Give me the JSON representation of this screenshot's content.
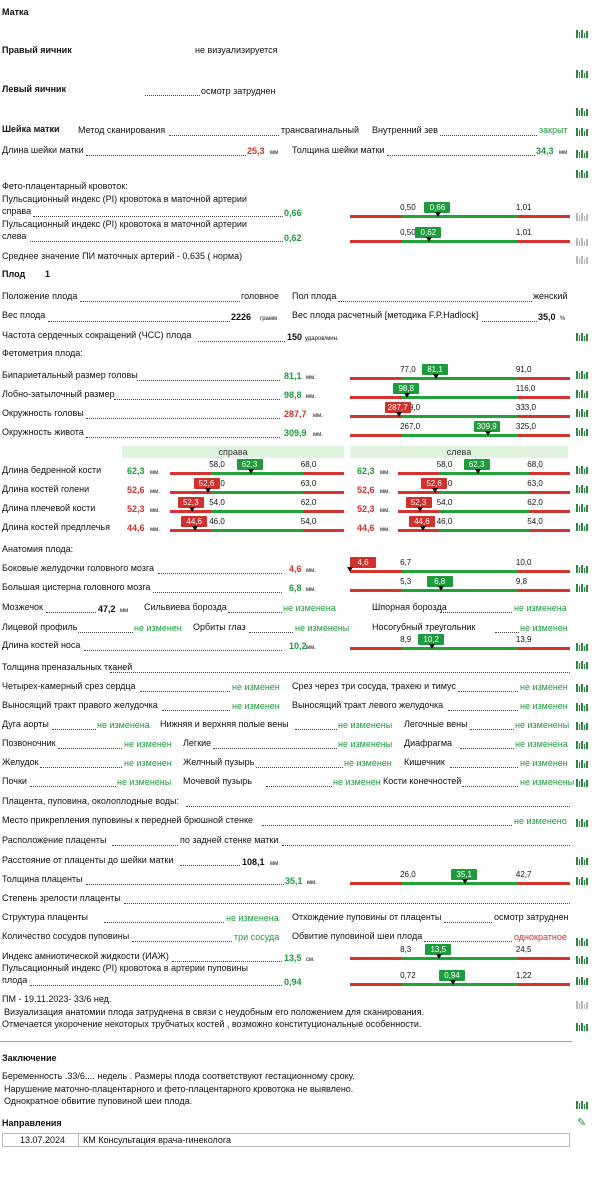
{
  "uterus_title": "Матка",
  "right_ovary": {
    "label": "Правый яичник",
    "value": "не визуализируется"
  },
  "left_ovary": {
    "label": "Левый яичник",
    "value": "осмотр затруднен"
  },
  "cervix": {
    "title": "Шейка матки",
    "scan_label": "Метод сканирования",
    "scan_value": "трансвагинальный",
    "os_label": "Внутренний зев",
    "os_value": "закрыт",
    "length_label": "Длина шейки матки",
    "length_value": "25,3",
    "length_unit": "мм",
    "thickness_label": "Толщина шейки матки",
    "thickness_value": "34,3",
    "thickness_unit": "мм"
  },
  "doppler": {
    "title": "Фето-плацентарный кровоток:",
    "pi_right_l1": "Пульсационный индекс (PI) кровотока в маточной артерии",
    "pi_right_l2": "справа",
    "pi_right_value": "0,66",
    "pi_left_l1": "Пульсационный индекс (PI) кровотока в маточной артерии",
    "pi_left_l2": "слева",
    "pi_left_value": "0,62",
    "mean": "Среднее значение ПИ маточных артерий -  0,635  ( норма)"
  },
  "fetus": {
    "label": "Плод",
    "number": "1",
    "position_label": "Положение плода",
    "position_value": "головное",
    "sex_label": "Пол плода",
    "sex_value": "женский",
    "weight_label": "Вес плода",
    "weight_value": "2226",
    "weight_unit": "грамм",
    "weight_calc_label": "Вес плода расчетный [методика F.P.Hadlock]",
    "weight_calc_value": "35,0",
    "weight_calc_unit": "%",
    "hr_label": "Частота сердечных сокращений (ЧСС) плода",
    "hr_value": "150",
    "hr_unit": "ударов/мин.",
    "fetometry_title": "Фетометрия плода:"
  },
  "fetometry": [
    {
      "label": "Бипариетальный размер головы",
      "value": "81,1",
      "unit": "мм.",
      "min": "77,0",
      "max": "91,0",
      "badge": "81,1"
    },
    {
      "label": "Лобно-затылочный размер",
      "value": "98,8",
      "unit": "мм.",
      "min": "98,0",
      "max": "116,0",
      "badge": "98,8"
    },
    {
      "label": "Окружность головы",
      "value": "287,7",
      "unit": "мм.",
      "min": "289,0",
      "max": "333,0",
      "badge": "287,7"
    },
    {
      "label": "Окружность живота",
      "value": "309,9",
      "unit": "мм.",
      "min": "267,0",
      "max": "325,0",
      "badge": "309,9"
    }
  ],
  "sides": {
    "right": "справа",
    "left": "слева"
  },
  "bones": [
    {
      "label": "Длина бедренной кости",
      "value": "62,3",
      "unit": "мм.",
      "min": "58,0",
      "max": "68,0",
      "badge": "62,3"
    },
    {
      "label": "Длина костей голени",
      "value": "52,6",
      "unit": "мм.",
      "min": "53,0",
      "max": "63,0",
      "badge": "52,6"
    },
    {
      "label": "Длина плечевой кости",
      "value": "52,3",
      "unit": "мм.",
      "min": "54,0",
      "max": "62,0",
      "badge": "52,3"
    },
    {
      "label": "Длина костей предплечья",
      "value": "44,6",
      "unit": "мм.",
      "min": "46,0",
      "max": "54,0",
      "badge": "44,6"
    }
  ],
  "anatomy": {
    "title": "Анатомия плода:",
    "ventricles_label": "Боковые желудочки головного мозга",
    "ventricles_value": "4,6",
    "ventricles_unit": "мм.",
    "ventricles_min": "6,7",
    "ventricles_max": "10,0",
    "ventricles_badge": "4,6",
    "cisterna_label": "Большая цистерна головного мозга",
    "cisterna_value": "6,8",
    "cisterna_unit": "мм.",
    "cisterna_min": "5,3",
    "cisterna_max": "9,8",
    "cisterna_badge": "6,8",
    "cerebellum_label": "Мозжечок",
    "cerebellum_value": "47,2",
    "cerebellum_unit": "мм",
    "sylvian_label": "Сильвиева борозда",
    "sylvian_value": "не изменена",
    "parieto_label": "Шпорная борозда",
    "parieto_value": "не изменена",
    "face_label": "Лицевой профиль",
    "face_value": "не изменен",
    "orbits_label": "Орбиты глаз",
    "orbits_value": "не изменены",
    "nasolabial_label": "Носогубный треугольник",
    "nasolabial_value": "не изменен",
    "nose_label": "Длина костей носа",
    "nose_value": "10,2",
    "nose_unit": "мм.",
    "nose_min": "8,9",
    "nose_max": "13,9",
    "nose_badge": "10,2",
    "nuchal_label": "Толщина преназальных тканей",
    "heart4_label": "Четырех-камерный срез сердца",
    "heart4_value": "не изменен",
    "three_vessels_label": "Срез через три сосуда, трахею и тимус",
    "three_vessels_value": "не изменен",
    "rvot_label": "Выносящий тракт правого желудочка",
    "rvot_value": "не изменен",
    "lvot_label": "Выносящий тракт левого желудочка",
    "lvot_value": "не изменен",
    "aorta_label": "Дуга аорты",
    "aorta_value": "не изменена",
    "vena_label": "Нижняя и верхняя полые вены",
    "vena_value": "не изменены",
    "pulmvein_label": "Легочные вены",
    "pulmvein_value": "не изменены",
    "spine_label": "Позвоночник",
    "spine_value": "не изменен",
    "lungs_label": "Легкие",
    "lungs_value": "не изменены",
    "diaphragm_label": "Диафрагма",
    "diaphragm_value": "не изменена",
    "stomach_label": "Желудок",
    "stomach_value": "не изменен",
    "gallbladder_label": "Желчный пузырь",
    "gallbladder_value": "не изменен",
    "bowel_label": "Кишечник",
    "bowel_value": "не изменен",
    "kidneys_label": "Почки",
    "kidneys_value": "не изменены",
    "bladder_label": "Мочевой пузырь",
    "bladder_value": "не изменен",
    "limbs_label": "Кости конечностей",
    "limbs_value": "не изменены"
  },
  "placenta": {
    "title": "Плацента, пуповина, околоплодные воды:",
    "cord_insert_label": "Место прикрепления пуповины к передней брюшной стенке",
    "cord_insert_value": "не изменено",
    "location_label": "Расположение плаценты",
    "location_value": "по задней стенке матки",
    "distance_label": "Расстояние от плаценты до шейки матки",
    "distance_value": "108,1",
    "distance_unit": "мм",
    "thickness_label": "Толщина плаценты",
    "thickness_value": "35,1",
    "thickness_unit": "мм.",
    "thickness_min": "26,0",
    "thickness_max": "42,7",
    "thickness_badge": "35,1",
    "maturity_label": "Степень зрелости плаценты",
    "structure_label": "Структура плаценты",
    "structure_value": "не изменена",
    "abruption_label": "Отхождение пуповины от плаценты",
    "abruption_value": "осмотр затруднен",
    "vessels_label": "Количество сосудов пуповины",
    "vessels_value": "три сосуда",
    "nuchal_cord_label": "Обвитие пуповиной шеи плода",
    "nuchal_cord_value": "однократное",
    "afi_label": "Индекс амниотической жидкости (ИАЖ)",
    "afi_value": "13,5",
    "afi_unit": "см.",
    "afi_min": "8,3",
    "afi_max": "24,5",
    "afi_badge": "13,5",
    "umb_pi_l1": "Пульсационный индекс (PI) кровотока в артерии пуповины",
    "umb_pi_l2": "плода",
    "umb_pi_value": "0,94",
    "umb_pi_min": "0,72",
    "umb_pi_max": "1,22",
    "umb_pi_badge": "0,94"
  },
  "comments": [
    "ПМ - 19.11.2023- 33/6 нед.",
    "Визуализация анатомии плода затруднена в связи с неудобным его положением для сканирования.",
    "Отмечается укорочение некоторых трубчатых костей , возможно конституциональные особенности."
  ],
  "conclusion": {
    "title": "Заключение",
    "lines": [
      "Беременность .33/6.... недель  . Размеры плода соответствуют  гестационному сроку.",
      "Нарушение маточно-плацентарного и фето-плацентарного кровотока не выявлено.",
      "Однократное обвитие пуповиной шеи плода."
    ]
  },
  "referrals": {
    "title": "Направления",
    "date": "13.07.2024",
    "text": "КМ Консультация врача-гинеколога"
  },
  "colors": {
    "normal": "#1e9b3c",
    "abnormal": "#d0312d"
  },
  "icons": {
    "row_action": "chart-icon",
    "referral_action": "edit-icon"
  }
}
